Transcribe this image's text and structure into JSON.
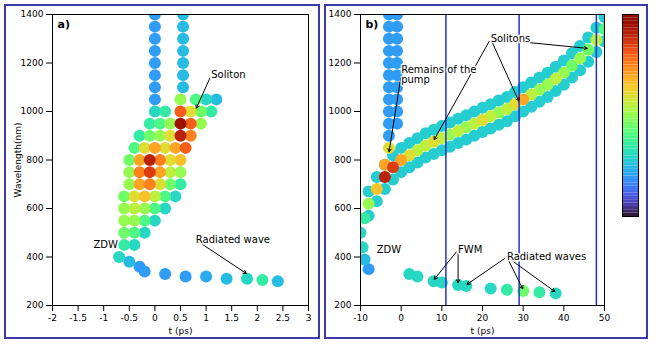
{
  "chart_data": [
    {
      "type": "spectrogram",
      "title": "a)",
      "xlabel": "t (ps)",
      "ylabel": "Wavelength(nm)",
      "xlim": [
        -2,
        3
      ],
      "xticks": [
        -2,
        -1.5,
        -1,
        -0.5,
        0,
        0.5,
        1,
        1.5,
        2,
        2.5,
        3
      ],
      "ylim": [
        200,
        1400
      ],
      "yticks": [
        200,
        400,
        600,
        800,
        1000,
        1200,
        1400
      ],
      "color": "turbo",
      "colorbar_range": [
        0,
        1
      ],
      "cells": [
        [
          0,
          1050,
          0.2
        ],
        [
          0,
          1100,
          0.2
        ],
        [
          0,
          1150,
          0.2
        ],
        [
          0,
          1200,
          0.2
        ],
        [
          0,
          1250,
          0.2
        ],
        [
          0,
          1300,
          0.2
        ],
        [
          0,
          1350,
          0.2
        ],
        [
          0,
          1400,
          0.2
        ],
        [
          0.55,
          1100,
          0.25
        ],
        [
          0.55,
          1150,
          0.25
        ],
        [
          0.55,
          1200,
          0.25
        ],
        [
          0.55,
          1250,
          0.25
        ],
        [
          0.55,
          1300,
          0.25
        ],
        [
          0.55,
          1350,
          0.25
        ],
        [
          0.55,
          1400,
          0.25
        ],
        [
          -0.6,
          450,
          0.35
        ],
        [
          -0.4,
          450,
          0.3
        ],
        [
          -0.6,
          500,
          0.45
        ],
        [
          -0.4,
          500,
          0.4
        ],
        [
          -0.2,
          500,
          0.3
        ],
        [
          -0.6,
          550,
          0.5
        ],
        [
          -0.4,
          550,
          0.5
        ],
        [
          -0.2,
          550,
          0.4
        ],
        [
          0,
          550,
          0.3
        ],
        [
          -0.6,
          600,
          0.5
        ],
        [
          -0.4,
          600,
          0.55
        ],
        [
          -0.2,
          600,
          0.5
        ],
        [
          0,
          600,
          0.4
        ],
        [
          0.2,
          600,
          0.3
        ],
        [
          -0.6,
          650,
          0.45
        ],
        [
          -0.4,
          650,
          0.6
        ],
        [
          -0.2,
          650,
          0.65
        ],
        [
          0,
          650,
          0.55
        ],
        [
          0.2,
          650,
          0.4
        ],
        [
          0.4,
          650,
          0.3
        ],
        [
          -0.5,
          700,
          0.5
        ],
        [
          -0.3,
          700,
          0.7
        ],
        [
          -0.1,
          700,
          0.75
        ],
        [
          0.1,
          700,
          0.6
        ],
        [
          0.3,
          700,
          0.45
        ],
        [
          0.5,
          700,
          0.35
        ],
        [
          -0.5,
          750,
          0.5
        ],
        [
          -0.3,
          750,
          0.75
        ],
        [
          -0.1,
          750,
          0.85
        ],
        [
          0.1,
          750,
          0.7
        ],
        [
          0.3,
          750,
          0.55
        ],
        [
          0.5,
          750,
          0.5
        ],
        [
          -0.5,
          800,
          0.45
        ],
        [
          -0.3,
          800,
          0.7
        ],
        [
          -0.1,
          800,
          0.9
        ],
        [
          0.1,
          800,
          0.75
        ],
        [
          0.3,
          800,
          0.6
        ],
        [
          0.5,
          800,
          0.65
        ],
        [
          -0.4,
          850,
          0.4
        ],
        [
          -0.2,
          850,
          0.6
        ],
        [
          0,
          850,
          0.7
        ],
        [
          0.2,
          850,
          0.6
        ],
        [
          0.4,
          850,
          0.7
        ],
        [
          0.6,
          850,
          0.8
        ],
        [
          -0.3,
          900,
          0.35
        ],
        [
          -0.1,
          900,
          0.45
        ],
        [
          0.1,
          900,
          0.5
        ],
        [
          0.3,
          900,
          0.6
        ],
        [
          0.5,
          900,
          0.9
        ],
        [
          0.7,
          900,
          0.75
        ],
        [
          -0.1,
          950,
          0.35
        ],
        [
          0.1,
          950,
          0.4
        ],
        [
          0.3,
          950,
          0.5
        ],
        [
          0.5,
          950,
          0.95
        ],
        [
          0.7,
          950,
          0.8
        ],
        [
          0.9,
          950,
          0.5
        ],
        [
          0,
          1000,
          0.3
        ],
        [
          0.2,
          1000,
          0.35
        ],
        [
          0.5,
          1000,
          0.8
        ],
        [
          0.7,
          1000,
          0.6
        ],
        [
          0.9,
          1000,
          0.45
        ],
        [
          1.1,
          1000,
          0.35
        ],
        [
          0.5,
          1050,
          0.5
        ],
        [
          0.8,
          1050,
          0.4
        ],
        [
          1,
          1050,
          0.3
        ],
        [
          1.2,
          1050,
          0.25
        ],
        [
          -0.7,
          400,
          0.3
        ],
        [
          -0.5,
          380,
          0.25
        ],
        [
          -0.3,
          360,
          0.2
        ],
        [
          -0.2,
          340,
          0.2
        ],
        [
          0.2,
          330,
          0.2
        ],
        [
          0.6,
          320,
          0.2
        ],
        [
          1,
          320,
          0.22
        ],
        [
          1.4,
          310,
          0.25
        ],
        [
          1.8,
          310,
          0.3
        ],
        [
          2.1,
          305,
          0.35
        ],
        [
          2.4,
          300,
          0.25
        ]
      ],
      "annotations": [
        {
          "text": "Soliton",
          "x": 1.1,
          "y": 1150,
          "targets": [
            [
              0.8,
              1010
            ]
          ]
        },
        {
          "text": "ZDW",
          "x": -1.2,
          "y": 450
        },
        {
          "text": "Radiated wave",
          "x": 0.8,
          "y": 470,
          "targets": [
            [
              1.8,
              330
            ]
          ]
        }
      ]
    },
    {
      "type": "spectrogram",
      "title": "b)",
      "xlabel": "t (ps)",
      "xlim": [
        -10,
        50
      ],
      "xticks": [
        -10,
        0,
        10,
        20,
        30,
        40,
        50
      ],
      "ylim": [
        200,
        1400
      ],
      "yticks": [
        200,
        400,
        600,
        800,
        1000,
        1200,
        1400
      ],
      "color": "turbo",
      "colorbar_range": [
        0,
        1
      ],
      "lines_x": [
        11,
        29,
        48
      ],
      "cells": [
        [
          -8,
          570,
          0.28
        ],
        [
          -8,
          620,
          0.5
        ],
        [
          -8,
          670,
          0.28
        ],
        [
          -6,
          630,
          0.28
        ],
        [
          -6,
          680,
          0.65
        ],
        [
          -6,
          730,
          0.28
        ],
        [
          -4,
          680,
          0.28
        ],
        [
          -4,
          730,
          0.9
        ],
        [
          -4,
          780,
          0.28
        ],
        [
          -2,
          720,
          0.28
        ],
        [
          -2,
          770,
          0.85
        ],
        [
          -2,
          820,
          0.28
        ],
        [
          0,
          750,
          0.28
        ],
        [
          0,
          800,
          0.7
        ],
        [
          0,
          850,
          0.28
        ],
        [
          2,
          770,
          0.28
        ],
        [
          2,
          820,
          0.6
        ],
        [
          2,
          870,
          0.28
        ],
        [
          4,
          790,
          0.28
        ],
        [
          4,
          840,
          0.55
        ],
        [
          4,
          890,
          0.28
        ],
        [
          6,
          810,
          0.28
        ],
        [
          6,
          860,
          0.55
        ],
        [
          6,
          910,
          0.28
        ],
        [
          8,
          825,
          0.28
        ],
        [
          8,
          875,
          0.6
        ],
        [
          8,
          925,
          0.28
        ],
        [
          10,
          840,
          0.28
        ],
        [
          10,
          890,
          0.55
        ],
        [
          10,
          940,
          0.28
        ],
        [
          12,
          855,
          0.28
        ],
        [
          12,
          905,
          0.5
        ],
        [
          12,
          955,
          0.28
        ],
        [
          14,
          870,
          0.28
        ],
        [
          14,
          920,
          0.55
        ],
        [
          14,
          970,
          0.28
        ],
        [
          16,
          885,
          0.28
        ],
        [
          16,
          935,
          0.5
        ],
        [
          16,
          985,
          0.28
        ],
        [
          18,
          900,
          0.28
        ],
        [
          18,
          950,
          0.55
        ],
        [
          18,
          1000,
          0.28
        ],
        [
          20,
          915,
          0.28
        ],
        [
          20,
          965,
          0.6
        ],
        [
          20,
          1015,
          0.28
        ],
        [
          22,
          930,
          0.28
        ],
        [
          22,
          980,
          0.55
        ],
        [
          22,
          1030,
          0.28
        ],
        [
          24,
          945,
          0.28
        ],
        [
          24,
          995,
          0.5
        ],
        [
          24,
          1045,
          0.28
        ],
        [
          26,
          960,
          0.28
        ],
        [
          26,
          1010,
          0.55
        ],
        [
          26,
          1060,
          0.28
        ],
        [
          28,
          980,
          0.28
        ],
        [
          28,
          1030,
          0.6
        ],
        [
          28,
          1080,
          0.28
        ],
        [
          30,
          1000,
          0.28
        ],
        [
          30,
          1050,
          0.7
        ],
        [
          30,
          1100,
          0.28
        ],
        [
          32,
          1020,
          0.28
        ],
        [
          32,
          1070,
          0.55
        ],
        [
          32,
          1120,
          0.28
        ],
        [
          34,
          1040,
          0.28
        ],
        [
          34,
          1090,
          0.5
        ],
        [
          34,
          1140,
          0.28
        ],
        [
          36,
          1060,
          0.28
        ],
        [
          36,
          1110,
          0.5
        ],
        [
          36,
          1160,
          0.28
        ],
        [
          38,
          1085,
          0.28
        ],
        [
          38,
          1135,
          0.55
        ],
        [
          38,
          1185,
          0.28
        ],
        [
          40,
          1110,
          0.28
        ],
        [
          40,
          1160,
          0.5
        ],
        [
          40,
          1210,
          0.28
        ],
        [
          42,
          1140,
          0.28
        ],
        [
          42,
          1190,
          0.45
        ],
        [
          42,
          1240,
          0.28
        ],
        [
          44,
          1170,
          0.28
        ],
        [
          44,
          1220,
          0.5
        ],
        [
          44,
          1270,
          0.28
        ],
        [
          46,
          1205,
          0.28
        ],
        [
          46,
          1255,
          0.45
        ],
        [
          46,
          1305,
          0.28
        ],
        [
          48,
          1245,
          0.28
        ],
        [
          48,
          1295,
          0.55
        ],
        [
          48,
          1345,
          0.28
        ],
        [
          50,
          1290,
          0.28
        ],
        [
          50,
          1340,
          0.4
        ],
        [
          50,
          1390,
          0.28
        ],
        [
          -4,
          780,
          0.7
        ],
        [
          -3,
          850,
          0.6
        ],
        [
          -3,
          900,
          0.2
        ],
        [
          -3,
          950,
          0.2
        ],
        [
          -3,
          1000,
          0.2
        ],
        [
          -3,
          1050,
          0.2
        ],
        [
          -3,
          1100,
          0.2
        ],
        [
          -3,
          1150,
          0.2
        ],
        [
          -3,
          1200,
          0.2
        ],
        [
          -3,
          1250,
          0.2
        ],
        [
          -3,
          1300,
          0.2
        ],
        [
          -3,
          1350,
          0.2
        ],
        [
          -3,
          1400,
          0.2
        ],
        [
          -1,
          950,
          0.2
        ],
        [
          -1,
          1000,
          0.2
        ],
        [
          -1,
          1050,
          0.2
        ],
        [
          -1,
          1100,
          0.2
        ],
        [
          -1,
          1150,
          0.2
        ],
        [
          -1,
          1200,
          0.2
        ],
        [
          -1,
          1250,
          0.2
        ],
        [
          -1,
          1300,
          0.2
        ],
        [
          -1,
          1350,
          0.2
        ],
        [
          -1,
          1400,
          0.2
        ],
        [
          -9,
          560,
          0.35
        ],
        [
          -10,
          500,
          0.3
        ],
        [
          -9.5,
          440,
          0.3
        ],
        [
          -9,
          390,
          0.25
        ],
        [
          -8,
          350,
          0.2
        ],
        [
          2,
          330,
          0.3
        ],
        [
          4,
          320,
          0.3
        ],
        [
          8,
          300,
          0.3
        ],
        [
          10,
          295,
          0.3
        ],
        [
          14,
          285,
          0.3
        ],
        [
          16,
          280,
          0.3
        ],
        [
          22,
          270,
          0.3
        ],
        [
          26,
          265,
          0.35
        ],
        [
          30,
          260,
          0.45
        ],
        [
          34,
          255,
          0.35
        ],
        [
          38,
          250,
          0.3
        ]
      ],
      "annotations": [
        {
          "text": "Remains of the pump",
          "x": 0,
          "y": 1150,
          "targets": [
            [
              -3,
              830
            ]
          ]
        },
        {
          "text": "Solitons",
          "x": 22,
          "y": 1300,
          "targets": [
            [
              8,
              880
            ],
            [
              29,
              1040
            ],
            [
              46,
              1260
            ]
          ]
        },
        {
          "text": "ZDW",
          "x": -6,
          "y": 430
        },
        {
          "text": "FWM",
          "x": 14,
          "y": 430,
          "targets": [
            [
              8,
              305
            ],
            [
              14,
              290
            ]
          ]
        },
        {
          "text": "Radiated waves",
          "x": 26,
          "y": 400,
          "targets": [
            [
              16,
              285
            ],
            [
              30,
              265
            ],
            [
              38,
              255
            ]
          ]
        }
      ]
    }
  ]
}
